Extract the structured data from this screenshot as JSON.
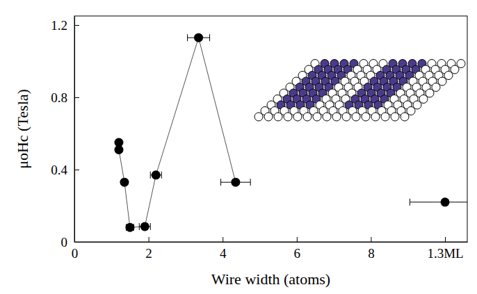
{
  "chart_data": {
    "type": "line",
    "x_label": "Wire width (atoms)",
    "y_label": "μoHc (Tesla)",
    "xlim": [
      0,
      10.6
    ],
    "xticks": [
      0,
      2,
      4,
      6,
      8,
      {
        "value": 10,
        "label": "1.3ML"
      }
    ],
    "ylim": [
      0,
      1.25
    ],
    "yticks": [
      0,
      0.4,
      0.8,
      1.2
    ],
    "series": [
      {
        "x": [
          1.2,
          1.2,
          1.35,
          1.5,
          1.9,
          2.2,
          3.35,
          4.35
        ],
        "values": [
          0.55,
          0.51,
          0.33,
          0.08,
          0.085,
          0.37,
          1.13,
          0.33
        ],
        "xerr": [
          0.03,
          0.03,
          0.05,
          0.1,
          0.15,
          0.15,
          0.3,
          0.4
        ],
        "color": "#000000",
        "marker": "circle",
        "line_style": "solid"
      },
      {
        "x": [
          10
        ],
        "values": [
          0.22
        ],
        "xerr": [
          0.95
        ],
        "color": "#000000",
        "marker": "circle",
        "line_style": "none"
      }
    ]
  }
}
